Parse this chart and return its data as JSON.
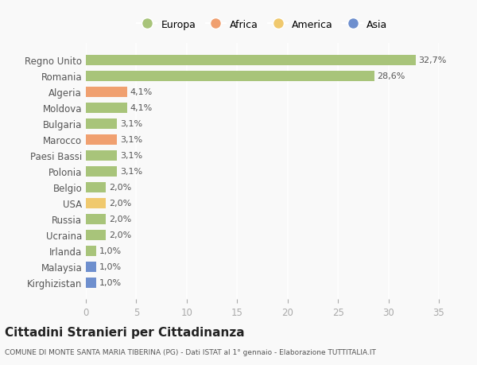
{
  "categories": [
    "Kirghizistan",
    "Malaysia",
    "Irlanda",
    "Ucraina",
    "Russia",
    "USA",
    "Belgio",
    "Polonia",
    "Paesi Bassi",
    "Marocco",
    "Bulgaria",
    "Moldova",
    "Algeria",
    "Romania",
    "Regno Unito"
  ],
  "values": [
    1.0,
    1.0,
    1.0,
    2.0,
    2.0,
    2.0,
    2.0,
    3.1,
    3.1,
    3.1,
    3.1,
    4.1,
    4.1,
    28.6,
    32.7
  ],
  "colors": [
    "#6e8fce",
    "#6e8fce",
    "#a8c47a",
    "#a8c47a",
    "#a8c47a",
    "#f0c96e",
    "#a8c47a",
    "#a8c47a",
    "#a8c47a",
    "#f0a070",
    "#a8c47a",
    "#a8c47a",
    "#f0a070",
    "#a8c47a",
    "#a8c47a"
  ],
  "labels": [
    "1,0%",
    "1,0%",
    "1,0%",
    "2,0%",
    "2,0%",
    "2,0%",
    "2,0%",
    "3,1%",
    "3,1%",
    "3,1%",
    "3,1%",
    "4,1%",
    "4,1%",
    "28,6%",
    "32,7%"
  ],
  "legend": [
    {
      "label": "Europa",
      "color": "#a8c47a"
    },
    {
      "label": "Africa",
      "color": "#f0a070"
    },
    {
      "label": "America",
      "color": "#f0c96e"
    },
    {
      "label": "Asia",
      "color": "#6e8fce"
    }
  ],
  "title": "Cittadini Stranieri per Cittadinanza",
  "subtitle": "COMUNE DI MONTE SANTA MARIA TIBERINA (PG) - Dati ISTAT al 1° gennaio - Elaborazione TUTTITALIA.IT",
  "xlim": [
    0,
    35
  ],
  "xticks": [
    0,
    5,
    10,
    15,
    20,
    25,
    30,
    35
  ],
  "background_color": "#f9f9f9",
  "grid_color": "#ffffff",
  "bar_height": 0.65
}
